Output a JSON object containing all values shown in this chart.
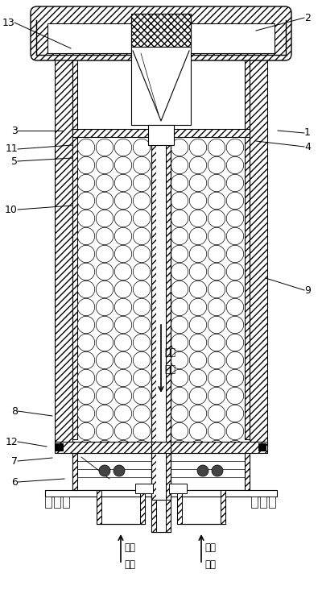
{
  "fig_width": 4.0,
  "fig_height": 7.63,
  "dpi": 100,
  "bg_color": "#ffffff",
  "line_color": "#000000",
  "labels": [
    [
      "1",
      378,
      165,
      345,
      162
    ],
    [
      "2",
      378,
      22,
      318,
      38
    ],
    [
      "3",
      22,
      162,
      78,
      162
    ],
    [
      "4",
      378,
      182,
      318,
      175
    ],
    [
      "5",
      22,
      200,
      90,
      196
    ],
    [
      "6",
      22,
      598,
      80,
      594
    ],
    [
      "7",
      22,
      572,
      65,
      568
    ],
    [
      "8",
      22,
      510,
      65,
      516
    ],
    [
      "9",
      378,
      360,
      330,
      345
    ],
    [
      "10",
      22,
      260,
      90,
      255
    ],
    [
      "11",
      22,
      185,
      90,
      180
    ],
    [
      "12",
      22,
      548,
      58,
      554
    ],
    [
      "13",
      18,
      28,
      88,
      60
    ]
  ]
}
